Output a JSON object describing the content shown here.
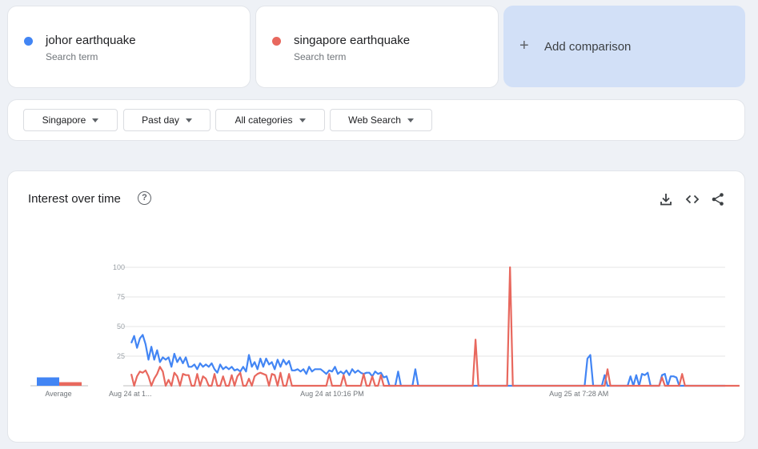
{
  "terms": [
    {
      "name": "johor earthquake",
      "sub": "Search term",
      "color": "#4285f4"
    },
    {
      "name": "singapore earthquake",
      "sub": "Search term",
      "color": "#e8685e"
    }
  ],
  "add_comparison": {
    "plus": "+",
    "label": "Add comparison"
  },
  "filters": {
    "region": "Singapore",
    "time": "Past day",
    "category": "All categories",
    "search_type": "Web Search"
  },
  "chart": {
    "title": "Interest over time",
    "help": "?",
    "average_label": "Average"
  },
  "chart_data": {
    "type": "line",
    "ylim": [
      0,
      100
    ],
    "yticks": [
      25,
      50,
      75,
      100
    ],
    "xtick_labels": [
      "Aug 24 at 1...",
      "Aug 24 at 10:16 PM",
      "Aug 25 at 7:28 AM"
    ],
    "xtick_index": [
      0,
      70,
      156
    ],
    "grid": true,
    "average": {
      "johor earthquake": 7,
      "singapore earthquake": 3
    },
    "series": [
      {
        "name": "johor earthquake",
        "color": "#4285f4",
        "values": [
          36,
          42,
          32,
          40,
          43,
          35,
          22,
          33,
          22,
          30,
          20,
          24,
          22,
          24,
          16,
          27,
          20,
          24,
          19,
          24,
          16,
          16,
          18,
          14,
          19,
          16,
          18,
          16,
          19,
          14,
          11,
          18,
          14,
          16,
          14,
          16,
          13,
          14,
          12,
          16,
          12,
          26,
          16,
          20,
          14,
          23,
          16,
          23,
          18,
          20,
          14,
          22,
          16,
          22,
          18,
          21,
          13,
          13,
          14,
          12,
          14,
          10,
          16,
          12,
          14,
          14,
          14,
          12,
          10,
          13,
          12,
          16,
          10,
          12,
          10,
          13,
          9,
          14,
          11,
          13,
          11,
          10,
          11,
          11,
          8,
          12,
          10,
          11,
          7,
          8,
          0,
          0,
          0,
          12,
          0,
          0,
          0,
          0,
          0,
          14,
          0,
          0,
          0,
          0,
          0,
          0,
          0,
          0,
          0,
          0,
          0,
          0,
          0,
          0,
          0,
          0,
          0,
          0,
          0,
          0,
          0,
          0,
          0,
          0,
          0,
          0,
          0,
          0,
          0,
          0,
          0,
          0,
          0,
          0,
          0,
          0,
          0,
          0,
          0,
          0,
          0,
          0,
          0,
          0,
          0,
          0,
          0,
          0,
          0,
          0,
          0,
          0,
          0,
          0,
          0,
          0,
          0,
          0,
          0,
          23,
          26,
          0,
          0,
          0,
          0,
          9,
          0,
          0,
          0,
          0,
          0,
          0,
          0,
          0,
          8,
          0,
          9,
          0,
          10,
          9,
          11,
          0,
          0,
          0,
          0,
          9,
          10,
          0,
          8,
          8,
          7,
          0,
          0,
          0,
          0,
          0,
          0,
          0,
          0,
          0,
          0,
          0,
          0,
          0,
          0,
          0,
          0,
          0
        ]
      },
      {
        "name": "singapore earthquake",
        "color": "#e8685e",
        "values": [
          10,
          0,
          8,
          12,
          11,
          13,
          8,
          0,
          6,
          10,
          16,
          12,
          0,
          5,
          0,
          11,
          8,
          0,
          10,
          9,
          9,
          0,
          0,
          10,
          0,
          8,
          6,
          0,
          0,
          10,
          0,
          0,
          8,
          0,
          0,
          9,
          0,
          8,
          11,
          0,
          0,
          6,
          0,
          8,
          10,
          11,
          10,
          9,
          0,
          10,
          9,
          0,
          11,
          0,
          0,
          10,
          0,
          0,
          0,
          0,
          0,
          0,
          0,
          0,
          0,
          0,
          0,
          0,
          0,
          10,
          0,
          0,
          0,
          0,
          9,
          0,
          0,
          0,
          0,
          0,
          0,
          10,
          0,
          0,
          8,
          0,
          0,
          9,
          0,
          0,
          0,
          0,
          0,
          0,
          0,
          0,
          0,
          0,
          0,
          0,
          0,
          0,
          0,
          0,
          0,
          0,
          0,
          0,
          0,
          0,
          0,
          0,
          0,
          0,
          0,
          0,
          0,
          0,
          0,
          0,
          39,
          0,
          0,
          0,
          0,
          0,
          0,
          0,
          0,
          0,
          0,
          0,
          100,
          0,
          0,
          0,
          0,
          0,
          0,
          0,
          0,
          0,
          0,
          0,
          0,
          0,
          0,
          0,
          0,
          0,
          0,
          0,
          0,
          0,
          0,
          0,
          0,
          0,
          0,
          0,
          0,
          0,
          0,
          0,
          0,
          0,
          14,
          0,
          0,
          0,
          0,
          0,
          0,
          0,
          0,
          0,
          0,
          0,
          0,
          0,
          0,
          0,
          0,
          0,
          0,
          7,
          0,
          0,
          0,
          0,
          0,
          0,
          10,
          0,
          0,
          0,
          0,
          0,
          0,
          0,
          0,
          0,
          0,
          0,
          0,
          0,
          0,
          0,
          0,
          0,
          0,
          0,
          0
        ]
      }
    ]
  }
}
